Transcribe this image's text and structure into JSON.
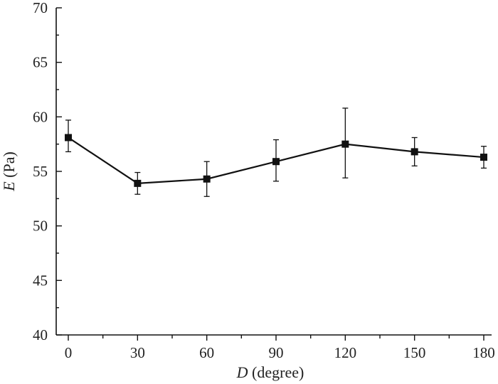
{
  "chart_data": {
    "type": "line",
    "xlabel_var": "D",
    "xlabel_unit": " (degree)",
    "ylabel_var": "E",
    "ylabel_unit": " (Pa)",
    "xlim": [
      0,
      180
    ],
    "ylim": [
      40,
      70
    ],
    "x_ticks": [
      0,
      30,
      60,
      90,
      120,
      150,
      180
    ],
    "x_minor_ticks": [
      15,
      45,
      75,
      105,
      135,
      165
    ],
    "y_ticks": [
      40,
      45,
      50,
      55,
      60,
      65,
      70
    ],
    "y_minor_ticks": [
      42.5,
      47.5,
      52.5,
      57.5,
      62.5,
      67.5
    ],
    "grid": false,
    "legend": "none",
    "series": [
      {
        "x": [
          0,
          30,
          60,
          90,
          120,
          150,
          180
        ],
        "values": [
          58.1,
          53.9,
          54.3,
          55.9,
          57.5,
          56.8,
          56.3
        ],
        "error_upper": [
          59.7,
          54.9,
          55.9,
          57.9,
          60.8,
          58.1,
          57.3
        ],
        "error_lower": [
          56.8,
          52.9,
          52.7,
          54.1,
          54.4,
          55.5,
          55.3
        ],
        "marker": "square",
        "color": "#111111"
      }
    ]
  }
}
